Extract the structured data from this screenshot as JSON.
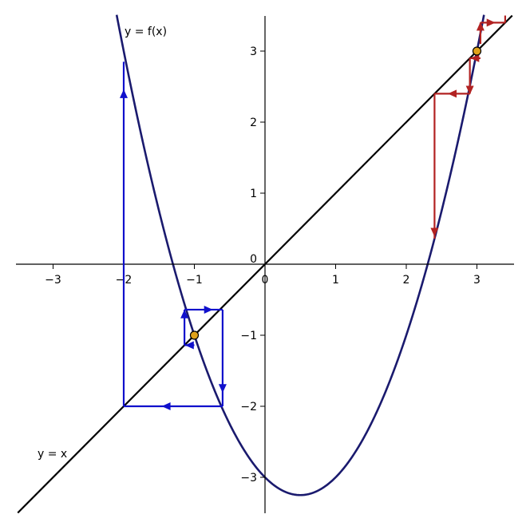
{
  "chart_data": {
    "type": "line",
    "xlim": [
      -3.5,
      3.5
    ],
    "ylim": [
      -3.5,
      3.5
    ],
    "grid": false,
    "x_ticks": [
      -3,
      -2,
      -1,
      0,
      1,
      2,
      3
    ],
    "y_ticks": [
      -3,
      -2,
      -1,
      0,
      1,
      2,
      3
    ],
    "x_tick_labels": [
      "−3",
      "−2",
      "−1",
      "0",
      "1",
      "2",
      "3"
    ],
    "y_tick_labels": [
      "−3",
      "−2",
      "−1",
      "",
      "1",
      "2",
      "3"
    ],
    "curves": [
      {
        "label": "y = f(x)",
        "expression": "x^2 - x - 3",
        "color": "#1a1a6e"
      },
      {
        "label": "y = x",
        "expression": "x",
        "color": "#000000"
      }
    ],
    "fixed_points": [
      {
        "x": -1,
        "y": -1
      },
      {
        "x": 3,
        "y": 3
      }
    ],
    "fixed_point_color": "#e0a21a",
    "cobweb_blue": {
      "color": "#1010cc",
      "segments": [
        [
          [
            -2,
            2.85
          ],
          [
            -2,
            -2
          ]
        ],
        [
          [
            -2,
            -2
          ],
          [
            -0.6,
            -2
          ]
        ],
        [
          [
            -0.6,
            -2
          ],
          [
            -0.6,
            -0.64
          ]
        ],
        [
          [
            -0.6,
            -0.64
          ],
          [
            -1.14,
            -0.64
          ]
        ],
        [
          [
            -1.14,
            -0.64
          ],
          [
            -1.14,
            -1.14
          ]
        ],
        [
          [
            -1.14,
            -1.14
          ],
          [
            -1.0,
            -1.14
          ]
        ]
      ],
      "arrows": [
        {
          "x": -2,
          "y": 2.4,
          "dir": "up"
        },
        {
          "x": -1.4,
          "y": -2,
          "dir": "left"
        },
        {
          "x": -0.6,
          "y": -1.75,
          "dir": "down"
        },
        {
          "x": -0.8,
          "y": -0.64,
          "dir": "right"
        },
        {
          "x": -1.14,
          "y": -0.7,
          "dir": "up"
        },
        {
          "x": -1.07,
          "y": -1.14,
          "dir": "left"
        }
      ]
    },
    "cobweb_red": {
      "color": "#b22222",
      "segments": [
        [
          [
            2.4,
            0.36
          ],
          [
            2.4,
            2.4
          ]
        ],
        [
          [
            2.4,
            2.4
          ],
          [
            2.9,
            2.4
          ]
        ],
        [
          [
            2.9,
            2.4
          ],
          [
            2.9,
            2.9
          ]
        ],
        [
          [
            2.9,
            2.9
          ],
          [
            3.05,
            2.9
          ]
        ],
        [
          [
            3.05,
            3.1
          ],
          [
            3.05,
            3.4
          ]
        ],
        [
          [
            3.05,
            3.4
          ],
          [
            3.4,
            3.4
          ]
        ],
        [
          [
            3.4,
            3.4
          ],
          [
            3.4,
            3.5
          ]
        ]
      ],
      "arrows": [
        {
          "x": 2.4,
          "y": 0.45,
          "dir": "down"
        },
        {
          "x": 2.65,
          "y": 2.4,
          "dir": "left"
        },
        {
          "x": 2.9,
          "y": 2.45,
          "dir": "down"
        },
        {
          "x": 2.97,
          "y": 2.9,
          "dir": "left"
        },
        {
          "x": 3.05,
          "y": 3.35,
          "dir": "up"
        },
        {
          "x": 3.2,
          "y": 3.4,
          "dir": "right"
        }
      ]
    }
  }
}
